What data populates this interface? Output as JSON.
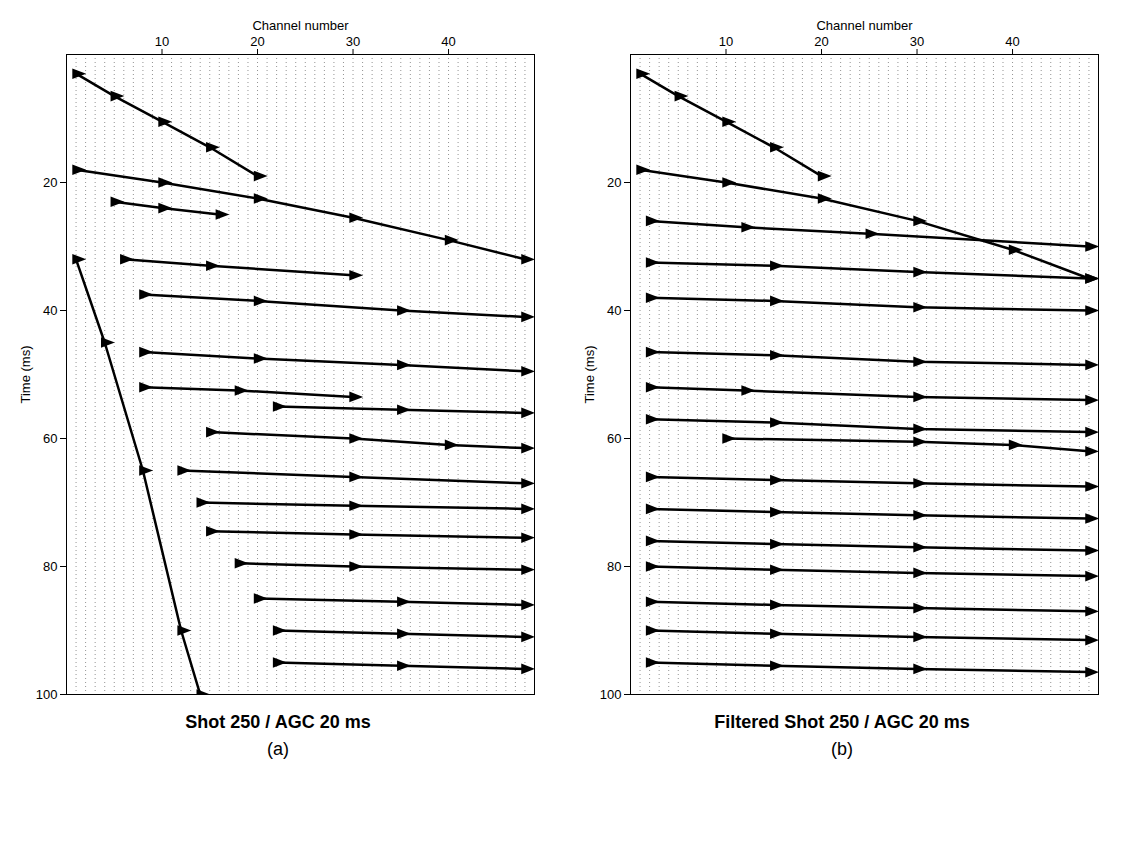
{
  "chart_data": [
    {
      "type": "wiggle",
      "title": "Shot 250 / AGC 20 ms",
      "panel": "(a)",
      "x_label": "Channel number",
      "y_label": "Time (ms)",
      "xlim": [
        0,
        49
      ],
      "xticks": [
        10,
        20,
        30,
        40
      ],
      "ylim": [
        100,
        0
      ],
      "yticks": [
        20,
        40,
        60,
        80,
        100
      ],
      "color": "#000000",
      "events": [
        {
          "channels": [
            1,
            5,
            10,
            15,
            20
          ],
          "times": [
            3,
            6.5,
            10.5,
            14.5,
            19
          ]
        },
        {
          "channels": [
            1,
            10,
            20,
            30,
            40,
            48
          ],
          "times": [
            18,
            20,
            22.5,
            25.5,
            29,
            32
          ]
        },
        {
          "channels": [
            5,
            10,
            16
          ],
          "times": [
            23,
            24,
            25
          ]
        },
        {
          "channels": [
            6,
            15,
            30
          ],
          "times": [
            32,
            33,
            34.5
          ]
        },
        {
          "channels": [
            8,
            20,
            35,
            48
          ],
          "times": [
            37.5,
            38.5,
            40,
            41
          ]
        },
        {
          "channels": [
            8,
            20,
            35,
            48
          ],
          "times": [
            46.5,
            47.5,
            48.5,
            49.5
          ]
        },
        {
          "channels": [
            8,
            18,
            30
          ],
          "times": [
            52,
            52.5,
            53.5
          ]
        },
        {
          "channels": [
            22,
            35,
            48
          ],
          "times": [
            55,
            55.5,
            56
          ]
        },
        {
          "channels": [
            15,
            30,
            40,
            48
          ],
          "times": [
            59,
            60,
            61,
            61.5
          ]
        },
        {
          "channels": [
            12,
            30,
            48
          ],
          "times": [
            65,
            66,
            67
          ]
        },
        {
          "channels": [
            14,
            30,
            48
          ],
          "times": [
            70,
            70.5,
            71
          ]
        },
        {
          "channels": [
            15,
            30,
            48
          ],
          "times": [
            74.5,
            75,
            75.5
          ]
        },
        {
          "channels": [
            18,
            30,
            48
          ],
          "times": [
            79.5,
            80,
            80.5
          ]
        },
        {
          "channels": [
            20,
            35,
            48
          ],
          "times": [
            85,
            85.5,
            86
          ]
        },
        {
          "channels": [
            22,
            35,
            48
          ],
          "times": [
            90,
            90.5,
            91
          ]
        },
        {
          "channels": [
            22,
            35,
            48
          ],
          "times": [
            95,
            95.5,
            96
          ]
        },
        {
          "channels": [
            1,
            4,
            8,
            12,
            14
          ],
          "times": [
            32,
            45,
            65,
            90,
            100
          ]
        }
      ]
    },
    {
      "type": "wiggle",
      "title": "Filtered Shot 250 / AGC 20 ms",
      "panel": "(b)",
      "x_label": "Channel number",
      "y_label": "Time (ms)",
      "xlim": [
        0,
        49
      ],
      "xticks": [
        10,
        20,
        30,
        40
      ],
      "ylim": [
        100,
        0
      ],
      "yticks": [
        20,
        40,
        60,
        80,
        100
      ],
      "color": "#000000",
      "events": [
        {
          "channels": [
            1,
            5,
            10,
            15,
            20
          ],
          "times": [
            3,
            6.5,
            10.5,
            14.5,
            19
          ]
        },
        {
          "channels": [
            1,
            10,
            20,
            30,
            40,
            48
          ],
          "times": [
            18,
            20,
            22.5,
            26,
            30.5,
            35
          ]
        },
        {
          "channels": [
            2,
            12,
            25,
            48
          ],
          "times": [
            26,
            27,
            28,
            30
          ]
        },
        {
          "channels": [
            2,
            15,
            30,
            48
          ],
          "times": [
            32.5,
            33,
            34,
            35
          ]
        },
        {
          "channels": [
            2,
            15,
            30,
            48
          ],
          "times": [
            38,
            38.5,
            39.5,
            40
          ]
        },
        {
          "channels": [
            2,
            15,
            30,
            48
          ],
          "times": [
            46.5,
            47,
            48,
            48.5
          ]
        },
        {
          "channels": [
            2,
            12,
            30,
            48
          ],
          "times": [
            52,
            52.5,
            53.5,
            54
          ]
        },
        {
          "channels": [
            2,
            15,
            30,
            48
          ],
          "times": [
            57,
            57.5,
            58.5,
            59
          ]
        },
        {
          "channels": [
            10,
            30,
            40,
            48
          ],
          "times": [
            60,
            60.5,
            61,
            62
          ]
        },
        {
          "channels": [
            2,
            15,
            30,
            48
          ],
          "times": [
            66,
            66.5,
            67,
            67.5
          ]
        },
        {
          "channels": [
            2,
            15,
            30,
            48
          ],
          "times": [
            71,
            71.5,
            72,
            72.5
          ]
        },
        {
          "channels": [
            2,
            15,
            30,
            48
          ],
          "times": [
            76,
            76.5,
            77,
            77.5
          ]
        },
        {
          "channels": [
            2,
            15,
            30,
            48
          ],
          "times": [
            80,
            80.5,
            81,
            81.5
          ]
        },
        {
          "channels": [
            2,
            15,
            30,
            48
          ],
          "times": [
            85.5,
            86,
            86.5,
            87
          ]
        },
        {
          "channels": [
            2,
            15,
            30,
            48
          ],
          "times": [
            90,
            90.5,
            91,
            91.5
          ]
        },
        {
          "channels": [
            2,
            15,
            30,
            48
          ],
          "times": [
            95,
            95.5,
            96,
            96.5
          ]
        }
      ]
    }
  ]
}
